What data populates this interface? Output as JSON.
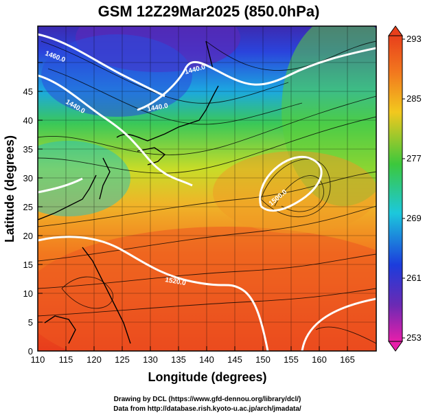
{
  "title": "GSM 12Z29Mar2025 (850.0hPa)",
  "x_axis": {
    "label": "Longitude (degrees)",
    "ticks": [
      "110",
      "115",
      "120",
      "125",
      "130",
      "135",
      "140",
      "145",
      "150",
      "155",
      "160",
      "165"
    ]
  },
  "y_axis": {
    "label": "Latitude  (degrees)",
    "ticks": [
      "0",
      "5",
      "10",
      "15",
      "20",
      "25",
      "30",
      "35",
      "40",
      "45"
    ]
  },
  "colorbar": {
    "ticks": [
      "293",
      "285",
      "277",
      "269",
      "261",
      "253"
    ]
  },
  "contour_labels": [
    "1460.0",
    "1440.0",
    "1440.0",
    "1440.0",
    "1500.0",
    "1520.0"
  ],
  "credits": {
    "line1": "Drawing by DCL (https://www.gfd-dennou.org/library/dcl/)",
    "line2": "Data from http://database.rish.kyoto-u.ac.jp/arch/jmadata/"
  },
  "colors": {
    "warm": "#e8401c",
    "orange": "#f28a1c",
    "yellow": "#f2e21c",
    "green": "#3cc83c",
    "cyan": "#1cc8dc",
    "blue": "#1c3cdc",
    "purple": "#6a2ab4",
    "magenta": "#e61eaa"
  }
}
